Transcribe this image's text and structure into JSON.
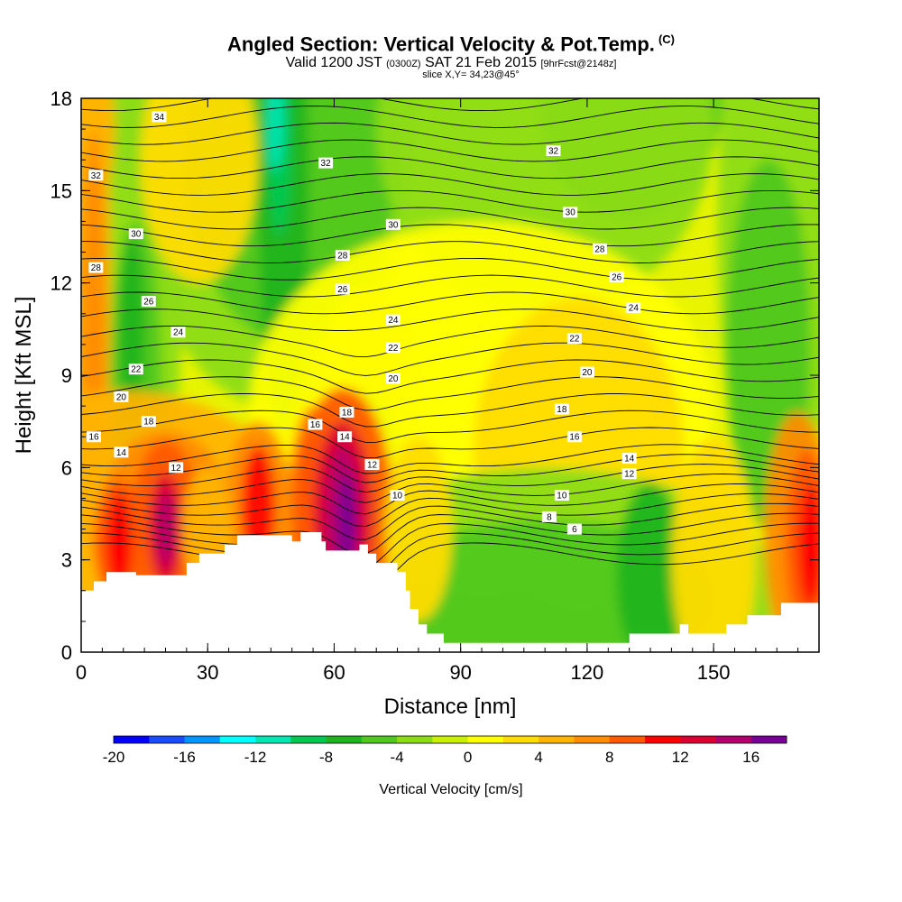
{
  "title": {
    "main": "Angled Section: Vertical Velocity & Pot.Temp.",
    "units": "(C)",
    "valid_prefix": "Valid 1200 JST",
    "valid_utc": "(0300Z)",
    "valid_date": "SAT 21 Feb 2015",
    "forecast": "[9hrFcst@2148z]",
    "slice": "slice X,Y= 34,23@45°"
  },
  "chart_data": {
    "type": "heatmap",
    "xlabel": "Distance [nm]",
    "ylabel": "Height [Kft MSL]",
    "xlim": [
      0,
      175
    ],
    "ylim": [
      0,
      18
    ],
    "x_ticks": [
      0,
      30,
      60,
      90,
      120,
      150
    ],
    "y_ticks": [
      0,
      3,
      6,
      9,
      12,
      15,
      18
    ],
    "colorbar": {
      "label": "Vertical Velocity [cm/s]",
      "ticks": [
        -20,
        -16,
        -12,
        -8,
        -4,
        0,
        4,
        8,
        12,
        16
      ],
      "min": -20,
      "max": 18,
      "step": 2,
      "colors": [
        "#0000ff",
        "#1a4cff",
        "#0096ff",
        "#00ffff",
        "#00e6b4",
        "#00c850",
        "#1eb41e",
        "#50c81e",
        "#8cdc14",
        "#c8f000",
        "#ffff00",
        "#ffdc00",
        "#ffb400",
        "#ff8c00",
        "#ff5a00",
        "#ff0000",
        "#dc0032",
        "#b4006e",
        "#780096"
      ]
    },
    "contour_field": "Potential Temperature (C)",
    "contour_label_values": [
      6,
      8,
      10,
      12,
      14,
      16,
      18,
      20,
      22,
      24,
      26,
      28,
      30,
      32,
      34
    ],
    "contour_labels": [
      {
        "value": "34",
        "x": 18.5,
        "y": 17.4
      },
      {
        "value": "32",
        "x": 3.5,
        "y": 15.5
      },
      {
        "value": "32",
        "x": 58,
        "y": 15.9
      },
      {
        "value": "32",
        "x": 112,
        "y": 16.3
      },
      {
        "value": "30",
        "x": 13,
        "y": 13.6
      },
      {
        "value": "30",
        "x": 74,
        "y": 13.9
      },
      {
        "value": "30",
        "x": 116,
        "y": 14.3
      },
      {
        "value": "28",
        "x": 3.5,
        "y": 12.5
      },
      {
        "value": "28",
        "x": 62,
        "y": 12.9
      },
      {
        "value": "28",
        "x": 123,
        "y": 13.1
      },
      {
        "value": "26",
        "x": 16,
        "y": 11.4
      },
      {
        "value": "26",
        "x": 62,
        "y": 11.8
      },
      {
        "value": "26",
        "x": 127,
        "y": 12.2
      },
      {
        "value": "24",
        "x": 23,
        "y": 10.4
      },
      {
        "value": "24",
        "x": 74,
        "y": 10.8
      },
      {
        "value": "24",
        "x": 131,
        "y": 11.2
      },
      {
        "value": "22",
        "x": 13,
        "y": 9.2
      },
      {
        "value": "22",
        "x": 74,
        "y": 9.9
      },
      {
        "value": "22",
        "x": 117,
        "y": 10.2
      },
      {
        "value": "20",
        "x": 9.5,
        "y": 8.3
      },
      {
        "value": "20",
        "x": 74,
        "y": 8.9
      },
      {
        "value": "20",
        "x": 120,
        "y": 9.1
      },
      {
        "value": "18",
        "x": 16,
        "y": 7.5
      },
      {
        "value": "18",
        "x": 63,
        "y": 7.8
      },
      {
        "value": "18",
        "x": 114,
        "y": 7.9
      },
      {
        "value": "16",
        "x": 3,
        "y": 7.0
      },
      {
        "value": "16",
        "x": 55.5,
        "y": 7.4
      },
      {
        "value": "16",
        "x": 117,
        "y": 7.0
      },
      {
        "value": "14",
        "x": 9.5,
        "y": 6.5
      },
      {
        "value": "14",
        "x": 62.5,
        "y": 7.0
      },
      {
        "value": "14",
        "x": 130,
        "y": 6.3
      },
      {
        "value": "12",
        "x": 22.5,
        "y": 6.0
      },
      {
        "value": "12",
        "x": 69,
        "y": 6.1
      },
      {
        "value": "12",
        "x": 130,
        "y": 5.8
      },
      {
        "value": "10",
        "x": 75,
        "y": 5.1
      },
      {
        "value": "10",
        "x": 114,
        "y": 5.1
      },
      {
        "value": "8",
        "x": 111,
        "y": 4.4
      },
      {
        "value": "6",
        "x": 117,
        "y": 4.0
      }
    ],
    "terrain": [
      [
        0,
        2.0
      ],
      [
        3,
        2.0
      ],
      [
        3,
        2.3
      ],
      [
        6,
        2.3
      ],
      [
        6,
        2.6
      ],
      [
        10,
        2.6
      ],
      [
        13,
        2.6
      ],
      [
        13,
        2.5
      ],
      [
        25,
        2.5
      ],
      [
        25,
        2.9
      ],
      [
        28,
        2.9
      ],
      [
        28,
        3.2
      ],
      [
        34,
        3.2
      ],
      [
        34,
        3.5
      ],
      [
        37,
        3.5
      ],
      [
        37,
        3.8
      ],
      [
        50,
        3.8
      ],
      [
        50,
        3.6
      ],
      [
        52,
        3.6
      ],
      [
        52,
        3.9
      ],
      [
        57,
        3.9
      ],
      [
        57,
        3.6
      ],
      [
        58,
        3.6
      ],
      [
        58,
        3.3
      ],
      [
        66,
        3.3
      ],
      [
        66,
        3.5
      ],
      [
        68,
        3.5
      ],
      [
        68,
        3.2
      ],
      [
        70,
        3.2
      ],
      [
        70,
        2.9
      ],
      [
        75,
        2.9
      ],
      [
        75,
        2.6
      ],
      [
        77,
        2.6
      ],
      [
        77,
        2.0
      ],
      [
        78,
        2.0
      ],
      [
        78,
        1.4
      ],
      [
        80,
        1.4
      ],
      [
        80,
        0.9
      ],
      [
        82,
        0.9
      ],
      [
        82,
        0.6
      ],
      [
        86,
        0.6
      ],
      [
        86,
        0.3
      ],
      [
        130,
        0.3
      ],
      [
        130,
        0.6
      ],
      [
        142,
        0.6
      ],
      [
        142,
        0.9
      ],
      [
        144,
        0.9
      ],
      [
        144,
        0.6
      ],
      [
        153,
        0.6
      ],
      [
        153,
        0.9
      ],
      [
        158,
        0.9
      ],
      [
        158,
        1.2
      ],
      [
        166,
        1.2
      ],
      [
        166,
        1.6
      ],
      [
        175,
        1.6
      ]
    ]
  }
}
